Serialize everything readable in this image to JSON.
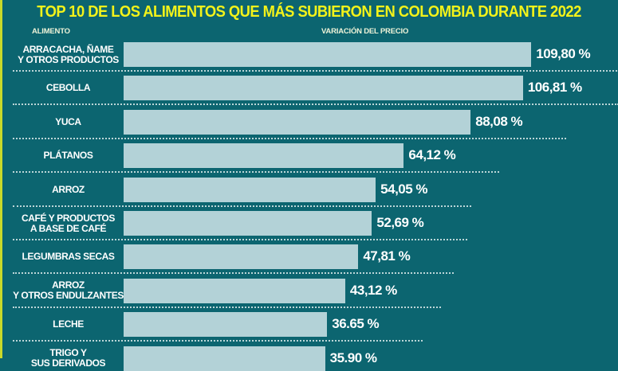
{
  "chart_data": {
    "type": "bar",
    "orientation": "horizontal",
    "title": "TOP 10 DE LOS ALIMENTOS QUE MÁS SUBIERON EN COLOMBIA DURANTE 2022",
    "category_header": "ALIMENTO",
    "value_header": "VARIACIÓN DEL PRECIO",
    "categories": [
      [
        "ARRACACHA, ÑAME",
        "Y OTROS PRODUCTOS"
      ],
      [
        "CEBOLLA"
      ],
      [
        "YUCA"
      ],
      [
        "PLÁTANOS"
      ],
      [
        "ARROZ"
      ],
      [
        "CAFÉ Y PRODUCTOS",
        "A BASE DE CAFÉ"
      ],
      [
        "LEGUMBRAS SECAS"
      ],
      [
        "ARROZ",
        "Y OTROS ENDULZANTES"
      ],
      [
        "LECHE"
      ],
      [
        "TRIGO Y",
        "SUS  DERIVADOS"
      ]
    ],
    "values": [
      109.8,
      106.81,
      88.08,
      64.12,
      54.05,
      52.69,
      47.81,
      43.12,
      36.65,
      35.9
    ],
    "value_labels": [
      "109,80 %",
      "106,81 %",
      "88,08 %",
      "64,12 %",
      "54,05 %",
      "52,69 %",
      "47,81 %",
      "43,12 %",
      "36.65 %",
      "35.90 %"
    ],
    "grid": false,
    "legend": "none",
    "colors": {
      "background": "#0c6570",
      "bar": "#b3d2d7",
      "title": "#f2f21a"
    }
  }
}
